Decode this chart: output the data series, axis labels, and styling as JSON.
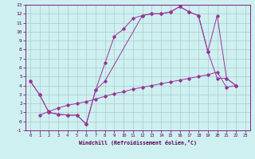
{
  "xlabel": "Windchill (Refroidissement éolien,°C)",
  "bg_color": "#cff0f0",
  "grid_color": "#aacccc",
  "line_color": "#993399",
  "xlim": [
    -0.5,
    23.5
  ],
  "ylim": [
    -1,
    13
  ],
  "xticks": [
    0,
    1,
    2,
    3,
    4,
    5,
    6,
    7,
    8,
    9,
    10,
    11,
    12,
    13,
    14,
    15,
    16,
    17,
    18,
    19,
    20,
    21,
    22,
    23
  ],
  "yticks": [
    -1,
    0,
    1,
    2,
    3,
    4,
    5,
    6,
    7,
    8,
    9,
    10,
    11,
    12,
    13
  ],
  "curve1_x": [
    0,
    1,
    2,
    3,
    4,
    5,
    6,
    7,
    8,
    9,
    10,
    11,
    12,
    13,
    14,
    15,
    16,
    17,
    18,
    19,
    20,
    21,
    22
  ],
  "curve1_y": [
    4.5,
    3.0,
    1.0,
    0.8,
    0.7,
    0.7,
    -0.3,
    3.5,
    6.5,
    9.5,
    10.3,
    11.5,
    11.8,
    12.0,
    12.0,
    12.2,
    12.8,
    12.2,
    11.8,
    7.8,
    4.8,
    4.8,
    4.0
  ],
  "curve2_x": [
    0,
    1,
    2,
    3,
    4,
    5,
    6,
    7,
    8,
    12,
    13,
    14,
    15,
    16,
    17,
    18,
    19,
    20,
    21,
    22
  ],
  "curve2_y": [
    4.5,
    3.0,
    1.0,
    0.8,
    0.7,
    0.7,
    -0.3,
    3.5,
    4.5,
    11.8,
    12.0,
    12.0,
    12.2,
    12.8,
    12.2,
    11.8,
    7.8,
    11.8,
    4.8,
    4.0
  ],
  "curve3_x": [
    1,
    2,
    3,
    4,
    5,
    6,
    7,
    8,
    9,
    10,
    11,
    12,
    13,
    14,
    15,
    16,
    17,
    18,
    19,
    20,
    21,
    22
  ],
  "curve3_y": [
    0.7,
    1.1,
    1.5,
    1.8,
    2.0,
    2.2,
    2.5,
    2.8,
    3.1,
    3.3,
    3.6,
    3.8,
    4.0,
    4.2,
    4.4,
    4.6,
    4.8,
    5.0,
    5.2,
    5.5,
    3.8,
    4.0
  ]
}
